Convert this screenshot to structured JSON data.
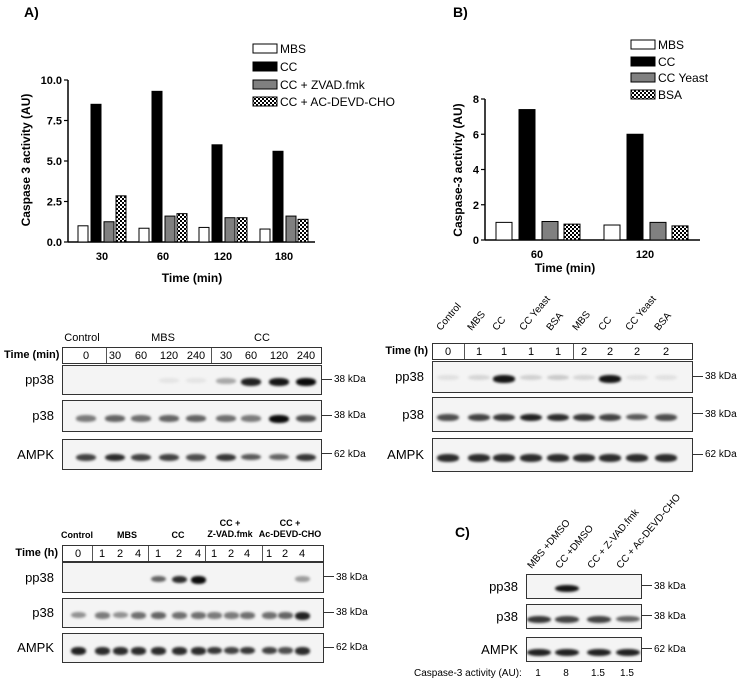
{
  "panels": {
    "a": "A)",
    "b": "B)",
    "c": "C)"
  },
  "chart_data": [
    {
      "type": "bar",
      "title": "",
      "xlabel": "Time (min)",
      "ylabel": "Caspase 3 activity (AU)",
      "ylim": [
        0,
        10
      ],
      "yticks": [
        "0.0",
        "2.5",
        "5.0",
        "7.5",
        "10.0"
      ],
      "categories": [
        "30",
        "60",
        "120",
        "180"
      ],
      "legend": "top-right",
      "series": [
        {
          "name": "MBS",
          "fill": "#ffffff",
          "values": [
            1.0,
            0.85,
            0.9,
            0.8
          ]
        },
        {
          "name": "CC",
          "fill": "#000000",
          "values": [
            8.5,
            9.3,
            6.0,
            5.6
          ]
        },
        {
          "name": "CC + ZVAD.fmk",
          "fill": "#808080",
          "values": [
            1.25,
            1.6,
            1.5,
            1.6
          ]
        },
        {
          "name": "CC + AC-DEVD-CHO",
          "fill": "checker",
          "values": [
            2.85,
            1.75,
            1.5,
            1.4
          ]
        }
      ]
    },
    {
      "type": "bar",
      "title": "",
      "xlabel": "Time (min)",
      "ylabel": "Caspase-3 activity (AU)",
      "ylim": [
        0,
        8
      ],
      "yticks": [
        "0",
        "2",
        "4",
        "6",
        "8"
      ],
      "categories": [
        "60",
        "120"
      ],
      "legend": "top-right",
      "series": [
        {
          "name": "MBS",
          "fill": "#ffffff",
          "values": [
            1.0,
            0.85
          ]
        },
        {
          "name": "CC",
          "fill": "#000000",
          "values": [
            7.4,
            6.0
          ]
        },
        {
          "name": "CC Yeast",
          "fill": "#808080",
          "values": [
            1.05,
            1.0
          ]
        },
        {
          "name": "BSA",
          "fill": "checker",
          "values": [
            0.9,
            0.8
          ]
        }
      ]
    }
  ],
  "blot1": {
    "groups": [
      "Control",
      "MBS",
      "CC"
    ],
    "time_label": "Time (min)",
    "lanes": [
      "0",
      "30",
      "60",
      "120",
      "240",
      "30",
      "60",
      "120",
      "240"
    ],
    "rows": [
      {
        "label": "pp38",
        "kda": "38 kDa",
        "bands": [
          0,
          0,
          0,
          0.03,
          0.03,
          0.3,
          0.9,
          0.95,
          1
        ]
      },
      {
        "label": "p38",
        "kda": "38 kDa",
        "bands": [
          0.5,
          0.6,
          0.55,
          0.6,
          0.6,
          0.55,
          0.5,
          1,
          0.7
        ]
      },
      {
        "label": "AMPK",
        "kda": "62 kDa",
        "bands": [
          0.75,
          0.85,
          0.75,
          0.75,
          0.7,
          0.8,
          0.65,
          0.6,
          0.8
        ]
      }
    ]
  },
  "blot2": {
    "lane_names": [
      "Control",
      "MBS",
      "CC",
      "CC Yeast",
      "BSA",
      "MBS",
      "CC",
      "CC Yeast",
      "BSA"
    ],
    "time_label": "Time (h)",
    "lanes": [
      "0",
      "1",
      "1",
      "1",
      "1",
      "2",
      "2",
      "2",
      "2"
    ],
    "rows": [
      {
        "label": "pp38",
        "kda": "38 kDa",
        "bands": [
          0.05,
          0.1,
          0.95,
          0.12,
          0.15,
          0.1,
          0.95,
          0.05,
          0.05
        ]
      },
      {
        "label": "p38",
        "kda": "38 kDa",
        "bands": [
          0.7,
          0.75,
          0.8,
          0.9,
          0.85,
          0.8,
          0.75,
          0.65,
          0.7
        ]
      },
      {
        "label": "AMPK",
        "kda": "62 kDa",
        "bands": [
          0.85,
          0.85,
          0.85,
          0.85,
          0.85,
          0.85,
          0.85,
          0.85,
          0.85
        ]
      }
    ]
  },
  "blot3": {
    "groups": [
      "Control",
      "MBS",
      "CC"
    ],
    "group_cc_zvad": [
      "CC +",
      "Z-VAD.fmk"
    ],
    "group_cc_devd": [
      "CC +",
      "Ac-DEVD-CHO"
    ],
    "time_label": "Time (h)",
    "lanes": [
      "0",
      "1",
      "2",
      "4",
      "1",
      "2",
      "4",
      "1",
      "2",
      "4",
      "1",
      "2",
      "4"
    ],
    "rows": [
      {
        "label": "pp38",
        "kda": "38 kDa",
        "bands": [
          0,
          0,
          0,
          0,
          0.6,
          0.85,
          1,
          0,
          0,
          0,
          0,
          0,
          0.35
        ]
      },
      {
        "label": "p38",
        "kda": "38 kDa",
        "bands": [
          0.4,
          0.5,
          0.4,
          0.55,
          0.6,
          0.55,
          0.55,
          0.5,
          0.5,
          0.55,
          0.55,
          0.6,
          0.9
        ]
      },
      {
        "label": "AMPK",
        "kda": "62 kDa",
        "bands": [
          0.9,
          0.85,
          0.85,
          0.85,
          0.85,
          0.85,
          0.85,
          0.8,
          0.75,
          0.8,
          0.75,
          0.7,
          0.85
        ]
      }
    ]
  },
  "blotC": {
    "lane_names": [
      "MBS +DMSO",
      "CC +DMSO",
      "CC + Z-VAD.fmk",
      "CC + Ac-DEVD-CHO"
    ],
    "rows": [
      {
        "label": "pp38",
        "kda": "38 kDa",
        "bands": [
          0,
          0.95,
          0,
          0
        ]
      },
      {
        "label": "p38",
        "kda": "38 kDa",
        "bands": [
          0.8,
          0.75,
          0.75,
          0.6
        ]
      },
      {
        "label": "AMPK",
        "kda": "62 kDa",
        "bands": [
          0.9,
          0.9,
          0.9,
          0.9
        ]
      }
    ],
    "activity_label": "Caspase-3 activity (AU):",
    "activity_values": [
      "1",
      "8",
      "1.5",
      "1.5"
    ]
  }
}
